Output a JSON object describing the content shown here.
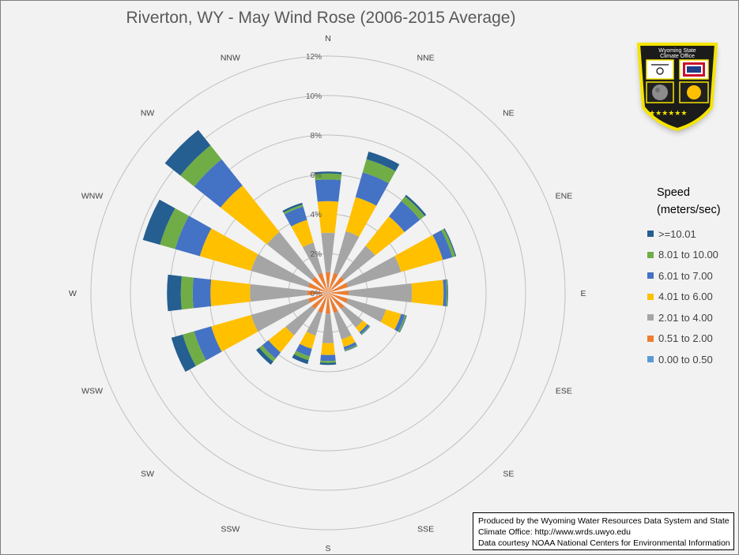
{
  "title": "Riverton, WY - May Wind Rose (2006-2015 Average)",
  "logo": {
    "lettering": "Wyoming State Climate Office",
    "colors": {
      "shield": "#1b1b1b",
      "border": "#f5e400"
    }
  },
  "legend": {
    "title_line1": "Speed",
    "title_line2": "(meters/sec)"
  },
  "credits": {
    "line1": "Produced by the Wyoming Water Resources Data System and State",
    "line2": "Climate Office: http://www.wrds.uwyo.edu",
    "line3": "Data courtesy NOAA National Centers for Environmental Information"
  },
  "chart_data": {
    "type": "radar-stacked-bar",
    "title": "Riverton, WY - May Wind Rose (2006-2015 Average)",
    "directions": [
      "N",
      "NNE",
      "NE",
      "ENE",
      "E",
      "ESE",
      "SE",
      "SSE",
      "S",
      "SSW",
      "SW",
      "WSW",
      "W",
      "WNW",
      "NW",
      "NNW"
    ],
    "rlim": [
      0,
      12
    ],
    "r_ticks": [
      "0%",
      "2%",
      "4%",
      "6%",
      "8%",
      "10%",
      "12%"
    ],
    "grid": true,
    "legend_position": "right",
    "series": [
      {
        "name": "0.00 to 0.50",
        "color": "#5b9bd5",
        "values": [
          0.05,
          0.05,
          0.05,
          0.05,
          0.05,
          0.05,
          0.05,
          0.05,
          0.05,
          0.05,
          0.05,
          0.05,
          0.05,
          0.05,
          0.05,
          0.05
        ]
      },
      {
        "name": "0.51 to 2.00",
        "color": "#ed7d31",
        "values": [
          1.0,
          1.0,
          1.0,
          1.0,
          1.0,
          1.0,
          1.0,
          1.0,
          1.0,
          1.0,
          1.0,
          1.0,
          1.0,
          1.0,
          1.0,
          1.0
        ]
      },
      {
        "name": "2.01 to 4.00",
        "color": "#a5a5a5",
        "values": [
          2.0,
          2.2,
          2.0,
          2.8,
          3.2,
          2.0,
          1.2,
          1.4,
          1.5,
          1.2,
          1.7,
          3.0,
          2.9,
          3.0,
          2.9,
          1.6
        ]
      },
      {
        "name": "4.01 to 6.00",
        "color": "#ffc000",
        "values": [
          1.6,
          1.8,
          1.9,
          2.2,
          1.6,
          0.8,
          0.3,
          0.4,
          0.6,
          0.7,
          1.1,
          2.1,
          2.0,
          2.7,
          3.0,
          1.2
        ]
      },
      {
        "name": "6.01 to 7.00",
        "color": "#4472c4",
        "values": [
          1.1,
          1.3,
          1.0,
          0.5,
          0.15,
          0.2,
          0.12,
          0.15,
          0.3,
          0.4,
          0.4,
          0.9,
          0.9,
          1.3,
          1.7,
          0.7
        ]
      },
      {
        "name": "8.01 to 10.00",
        "color": "#70ad47",
        "values": [
          0.3,
          0.7,
          0.3,
          0.15,
          0.05,
          0.07,
          0.04,
          0.05,
          0.1,
          0.2,
          0.2,
          0.6,
          0.6,
          0.8,
          0.9,
          0.1
        ]
      },
      {
        "name": ">=10.01",
        "color": "#255e91",
        "values": [
          0.1,
          0.4,
          0.1,
          0.05,
          0.03,
          0.03,
          0.02,
          0.03,
          0.1,
          0.2,
          0.2,
          0.6,
          0.7,
          0.9,
          1.0,
          0.1
        ]
      }
    ]
  }
}
